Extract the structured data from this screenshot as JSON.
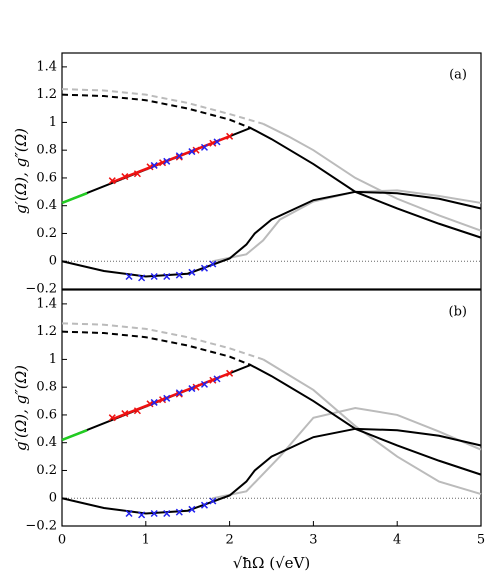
{
  "chart_data": [
    {
      "type": "line",
      "panel_label": "(a)",
      "ylabel": "g′(Ω), g″(Ω)",
      "xlim": [
        0,
        5
      ],
      "ylim": [
        -0.2,
        1.5
      ],
      "yticks": [
        {
          "value": -0.2,
          "label": "−0.2"
        },
        0,
        0.2,
        0.4,
        0.6,
        0.8,
        1,
        1.2,
        1.4
      ],
      "hline": 0,
      "series": [
        {
          "color": "#bbbbbb",
          "style": "dashed",
          "x": [
            0,
            0.5,
            1,
            1.5,
            2,
            2.4
          ],
          "values": [
            1.24,
            1.23,
            1.2,
            1.14,
            1.06,
            0.99
          ]
        },
        {
          "color": "#bbbbbb",
          "style": "solid",
          "x": [
            2.4,
            2.7,
            3,
            3.5,
            4,
            4.5,
            5
          ],
          "values": [
            0.99,
            0.9,
            0.8,
            0.6,
            0.45,
            0.33,
            0.22
          ]
        },
        {
          "color": "#bbbbbb",
          "style": "solid",
          "x": [
            1.8,
            2.2,
            2.4,
            2.6,
            3,
            3.5,
            4,
            4.5,
            5
          ],
          "values": [
            0,
            0.05,
            0.15,
            0.3,
            0.43,
            0.5,
            0.51,
            0.47,
            0.42
          ]
        },
        {
          "color": "#000000",
          "style": "dashed",
          "x": [
            0,
            0.5,
            1,
            1.5,
            2,
            2.25
          ],
          "values": [
            1.2,
            1.19,
            1.16,
            1.1,
            1.02,
            0.96
          ]
        },
        {
          "color": "#000000",
          "style": "solid",
          "x": [
            0,
            2.25,
            2.5,
            3,
            3.5,
            4,
            4.5,
            5
          ],
          "values": [
            0.42,
            0.96,
            0.88,
            0.7,
            0.5,
            0.38,
            0.27,
            0.17
          ]
        },
        {
          "color": "#000000",
          "style": "solid",
          "x": [
            0,
            0.5,
            1,
            1.5,
            2,
            2.2,
            2.3,
            2.5,
            3,
            3.5,
            4,
            4.5,
            5
          ],
          "values": [
            0,
            -0.07,
            -0.11,
            -0.09,
            0.02,
            0.12,
            0.2,
            0.3,
            0.44,
            0.5,
            0.49,
            0.45,
            0.38
          ]
        },
        {
          "color": "#22cc22",
          "style": "thick",
          "x": [
            0,
            0.3
          ],
          "values": [
            0.42,
            0.49
          ]
        },
        {
          "color": "#ee1111",
          "style": "thick",
          "x": [
            0.6,
            2.0
          ],
          "values": [
            0.57,
            0.9
          ]
        },
        {
          "color": "#ee1111",
          "style": "markers",
          "x": [
            0.6,
            0.75,
            0.9,
            1.05,
            1.2,
            1.4,
            1.6,
            1.8,
            2.0
          ],
          "values": [
            0.58,
            0.61,
            0.63,
            0.68,
            0.71,
            0.75,
            0.8,
            0.85,
            0.9
          ]
        },
        {
          "color": "#2222ee",
          "style": "markers",
          "x": [
            1.1,
            1.25,
            1.4,
            1.55,
            1.7,
            1.85
          ],
          "values": [
            0.69,
            0.72,
            0.76,
            0.79,
            0.82,
            0.86
          ]
        },
        {
          "color": "#2222ee",
          "style": "markers",
          "x": [
            0.8,
            0.95,
            1.1,
            1.25,
            1.4,
            1.55,
            1.7,
            1.8
          ],
          "values": [
            -0.11,
            -0.12,
            -0.11,
            -0.11,
            -0.1,
            -0.08,
            -0.05,
            -0.02
          ]
        }
      ]
    },
    {
      "type": "line",
      "panel_label": "(b)",
      "ylabel": "g′(Ω), g″(Ω)",
      "xlabel": "√ħΩ (√eV)",
      "xlim": [
        0,
        5
      ],
      "xticks": [
        0,
        1,
        2,
        3,
        4,
        5
      ],
      "ylim": [
        -0.2,
        1.5
      ],
      "yticks": [
        {
          "value": -0.2,
          "label": "−0.2"
        },
        0,
        0.2,
        0.4,
        0.6,
        0.8,
        1,
        1.2,
        1.4
      ],
      "hline": 0,
      "series": [
        {
          "color": "#bbbbbb",
          "style": "dashed",
          "x": [
            0,
            0.5,
            1,
            1.5,
            2,
            2.4
          ],
          "values": [
            1.26,
            1.25,
            1.22,
            1.16,
            1.08,
            1.0
          ]
        },
        {
          "color": "#bbbbbb",
          "style": "solid",
          "x": [
            2.4,
            3,
            3.5,
            4,
            4.5,
            5
          ],
          "values": [
            1.0,
            0.78,
            0.52,
            0.3,
            0.12,
            0.03
          ]
        },
        {
          "color": "#bbbbbb",
          "style": "solid",
          "x": [
            1.8,
            2.2,
            2.6,
            3,
            3.5,
            4,
            4.5,
            5
          ],
          "values": [
            0,
            0.05,
            0.3,
            0.58,
            0.65,
            0.6,
            0.48,
            0.35
          ]
        },
        {
          "color": "#000000",
          "style": "dashed",
          "x": [
            0,
            0.5,
            1,
            1.5,
            2,
            2.25
          ],
          "values": [
            1.2,
            1.19,
            1.16,
            1.1,
            1.02,
            0.96
          ]
        },
        {
          "color": "#000000",
          "style": "solid",
          "x": [
            0,
            2.25,
            2.5,
            3,
            3.5,
            4,
            4.5,
            5
          ],
          "values": [
            0.42,
            0.96,
            0.88,
            0.7,
            0.5,
            0.38,
            0.27,
            0.17
          ]
        },
        {
          "color": "#000000",
          "style": "solid",
          "x": [
            0,
            0.5,
            1,
            1.5,
            2,
            2.2,
            2.3,
            2.5,
            3,
            3.5,
            4,
            4.5,
            5
          ],
          "values": [
            0,
            -0.07,
            -0.11,
            -0.09,
            0.02,
            0.12,
            0.2,
            0.3,
            0.44,
            0.5,
            0.49,
            0.45,
            0.38
          ]
        },
        {
          "color": "#22cc22",
          "style": "thick",
          "x": [
            0,
            0.3
          ],
          "values": [
            0.42,
            0.49
          ]
        },
        {
          "color": "#ee1111",
          "style": "thick",
          "x": [
            0.6,
            2.0
          ],
          "values": [
            0.57,
            0.9
          ]
        },
        {
          "color": "#ee1111",
          "style": "markers",
          "x": [
            0.6,
            0.75,
            0.9,
            1.05,
            1.2,
            1.4,
            1.6,
            1.8,
            2.0
          ],
          "values": [
            0.58,
            0.61,
            0.63,
            0.68,
            0.71,
            0.75,
            0.8,
            0.85,
            0.9
          ]
        },
        {
          "color": "#2222ee",
          "style": "markers",
          "x": [
            1.1,
            1.25,
            1.4,
            1.55,
            1.7,
            1.85
          ],
          "values": [
            0.69,
            0.72,
            0.76,
            0.79,
            0.82,
            0.86
          ]
        },
        {
          "color": "#2222ee",
          "style": "markers",
          "x": [
            0.8,
            0.95,
            1.1,
            1.25,
            1.4,
            1.55,
            1.7,
            1.8
          ],
          "values": [
            -0.11,
            -0.12,
            -0.11,
            -0.11,
            -0.1,
            -0.08,
            -0.05,
            -0.02
          ]
        }
      ]
    }
  ]
}
